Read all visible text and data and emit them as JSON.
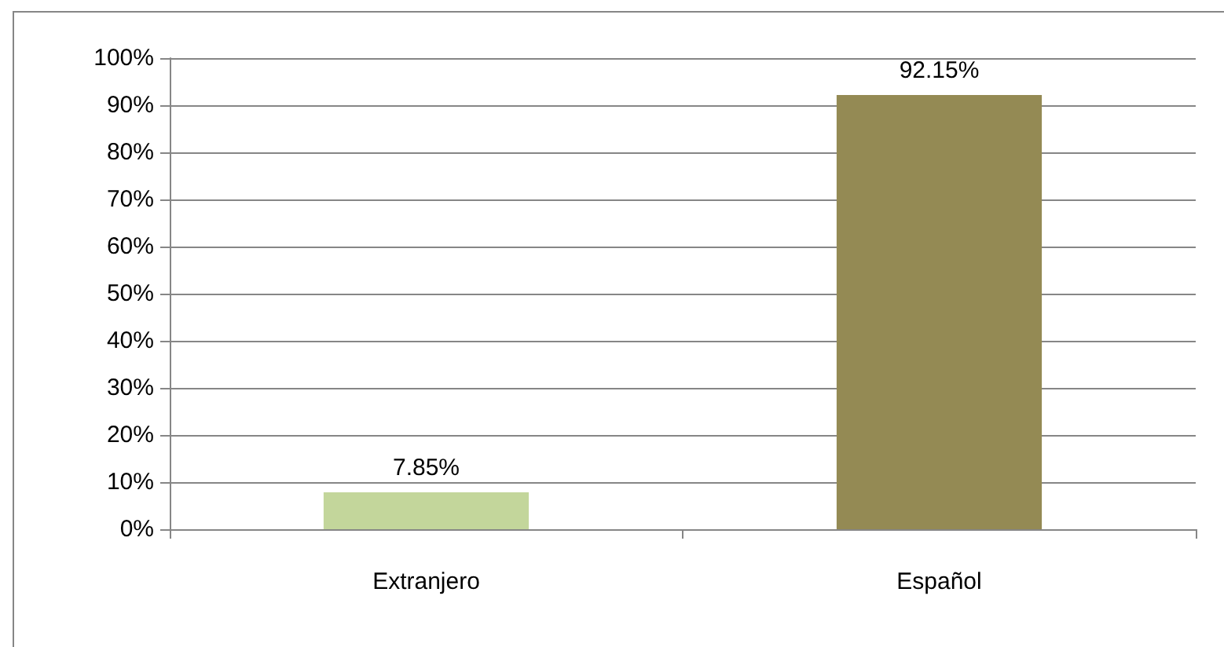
{
  "chart_data": {
    "type": "bar",
    "categories": [
      "Extranjero",
      "Español"
    ],
    "values": [
      7.85,
      92.15
    ],
    "colors": [
      "#c3d69b",
      "#948a54"
    ],
    "value_labels": [
      "7.85%",
      "92.15%"
    ],
    "ylim": [
      0,
      100
    ],
    "yticks": [
      {
        "value": 0,
        "label": "0%"
      },
      {
        "value": 10,
        "label": "10%"
      },
      {
        "value": 20,
        "label": "20%"
      },
      {
        "value": 30,
        "label": "30%"
      },
      {
        "value": 40,
        "label": "40%"
      },
      {
        "value": 50,
        "label": "50%"
      },
      {
        "value": 60,
        "label": "60%"
      },
      {
        "value": 70,
        "label": "70%"
      },
      {
        "value": 80,
        "label": "80%"
      },
      {
        "value": 90,
        "label": "90%"
      },
      {
        "value": 100,
        "label": "100%"
      }
    ],
    "grid": "y"
  }
}
